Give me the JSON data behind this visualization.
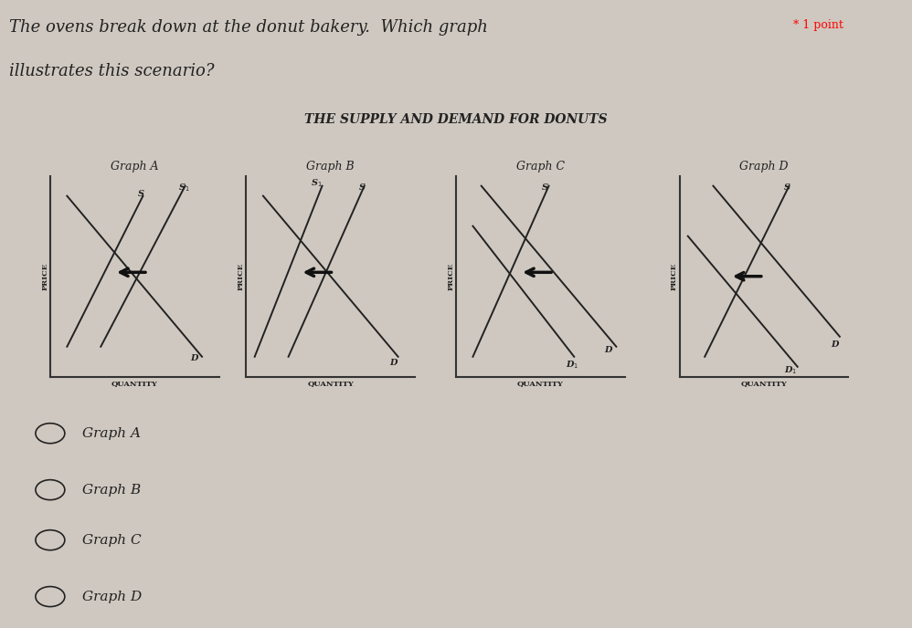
{
  "title": "THE SUPPLY AND DEMAND FOR DONUTS",
  "question_text_line1": "The ovens break down at the donut bakery.  Which graph",
  "question_text_line2": "illustrates this scenario?",
  "point_text": "* 1 point",
  "graph_titles": [
    "Graph A",
    "Graph B",
    "Graph C",
    "Graph D"
  ],
  "choices": [
    "Graph A",
    "Graph B",
    "Graph C",
    "Graph D"
  ],
  "bg_color": "#cfc8c0",
  "axis_color": "#333333",
  "line_color": "#222222",
  "arrow_color": "#111111",
  "label_color": "#222222",
  "title_fontsize": 10,
  "graph_title_fontsize": 9,
  "axis_label_fontsize": 6,
  "curve_label_fontsize": 7,
  "choice_fontsize": 11,
  "question_fontsize": 13
}
